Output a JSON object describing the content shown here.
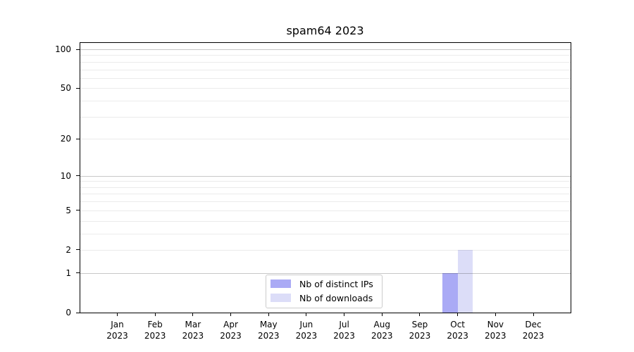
{
  "title": "spam64 2023",
  "chart_data": {
    "type": "bar",
    "title": "spam64 2023",
    "categories": [
      "Jan",
      "Feb",
      "Mar",
      "Apr",
      "May",
      "Jun",
      "Jul",
      "Aug",
      "Sep",
      "Oct",
      "Nov",
      "Dec"
    ],
    "x_tick_year": "2023",
    "xlabel": "",
    "ylabel": "",
    "yscale": "log1p",
    "ylim": [
      0,
      113
    ],
    "ytick_values": [
      0,
      1,
      2,
      5,
      10,
      20,
      50,
      100
    ],
    "ytick_labels": [
      "0",
      "1",
      "2",
      "5",
      "10",
      "20",
      "50",
      "100"
    ],
    "y_major_gridlines": [
      1,
      10,
      100
    ],
    "y_minor_gridlines": [
      2,
      3,
      4,
      5,
      6,
      7,
      8,
      9,
      20,
      30,
      40,
      50,
      60,
      70,
      80,
      90
    ],
    "grid": "horizontal",
    "legend_position": "lower center inside plot",
    "series": [
      {
        "name": "Nb of distinct IPs",
        "color": "#aaaaf5",
        "values": [
          0,
          0,
          0,
          0,
          0,
          0,
          0,
          0,
          0,
          1,
          0,
          0
        ]
      },
      {
        "name": "Nb of downloads",
        "color": "#dcddf8",
        "values": [
          0,
          0,
          0,
          0,
          0,
          0,
          0,
          0,
          0,
          2,
          0,
          0
        ]
      }
    ]
  }
}
